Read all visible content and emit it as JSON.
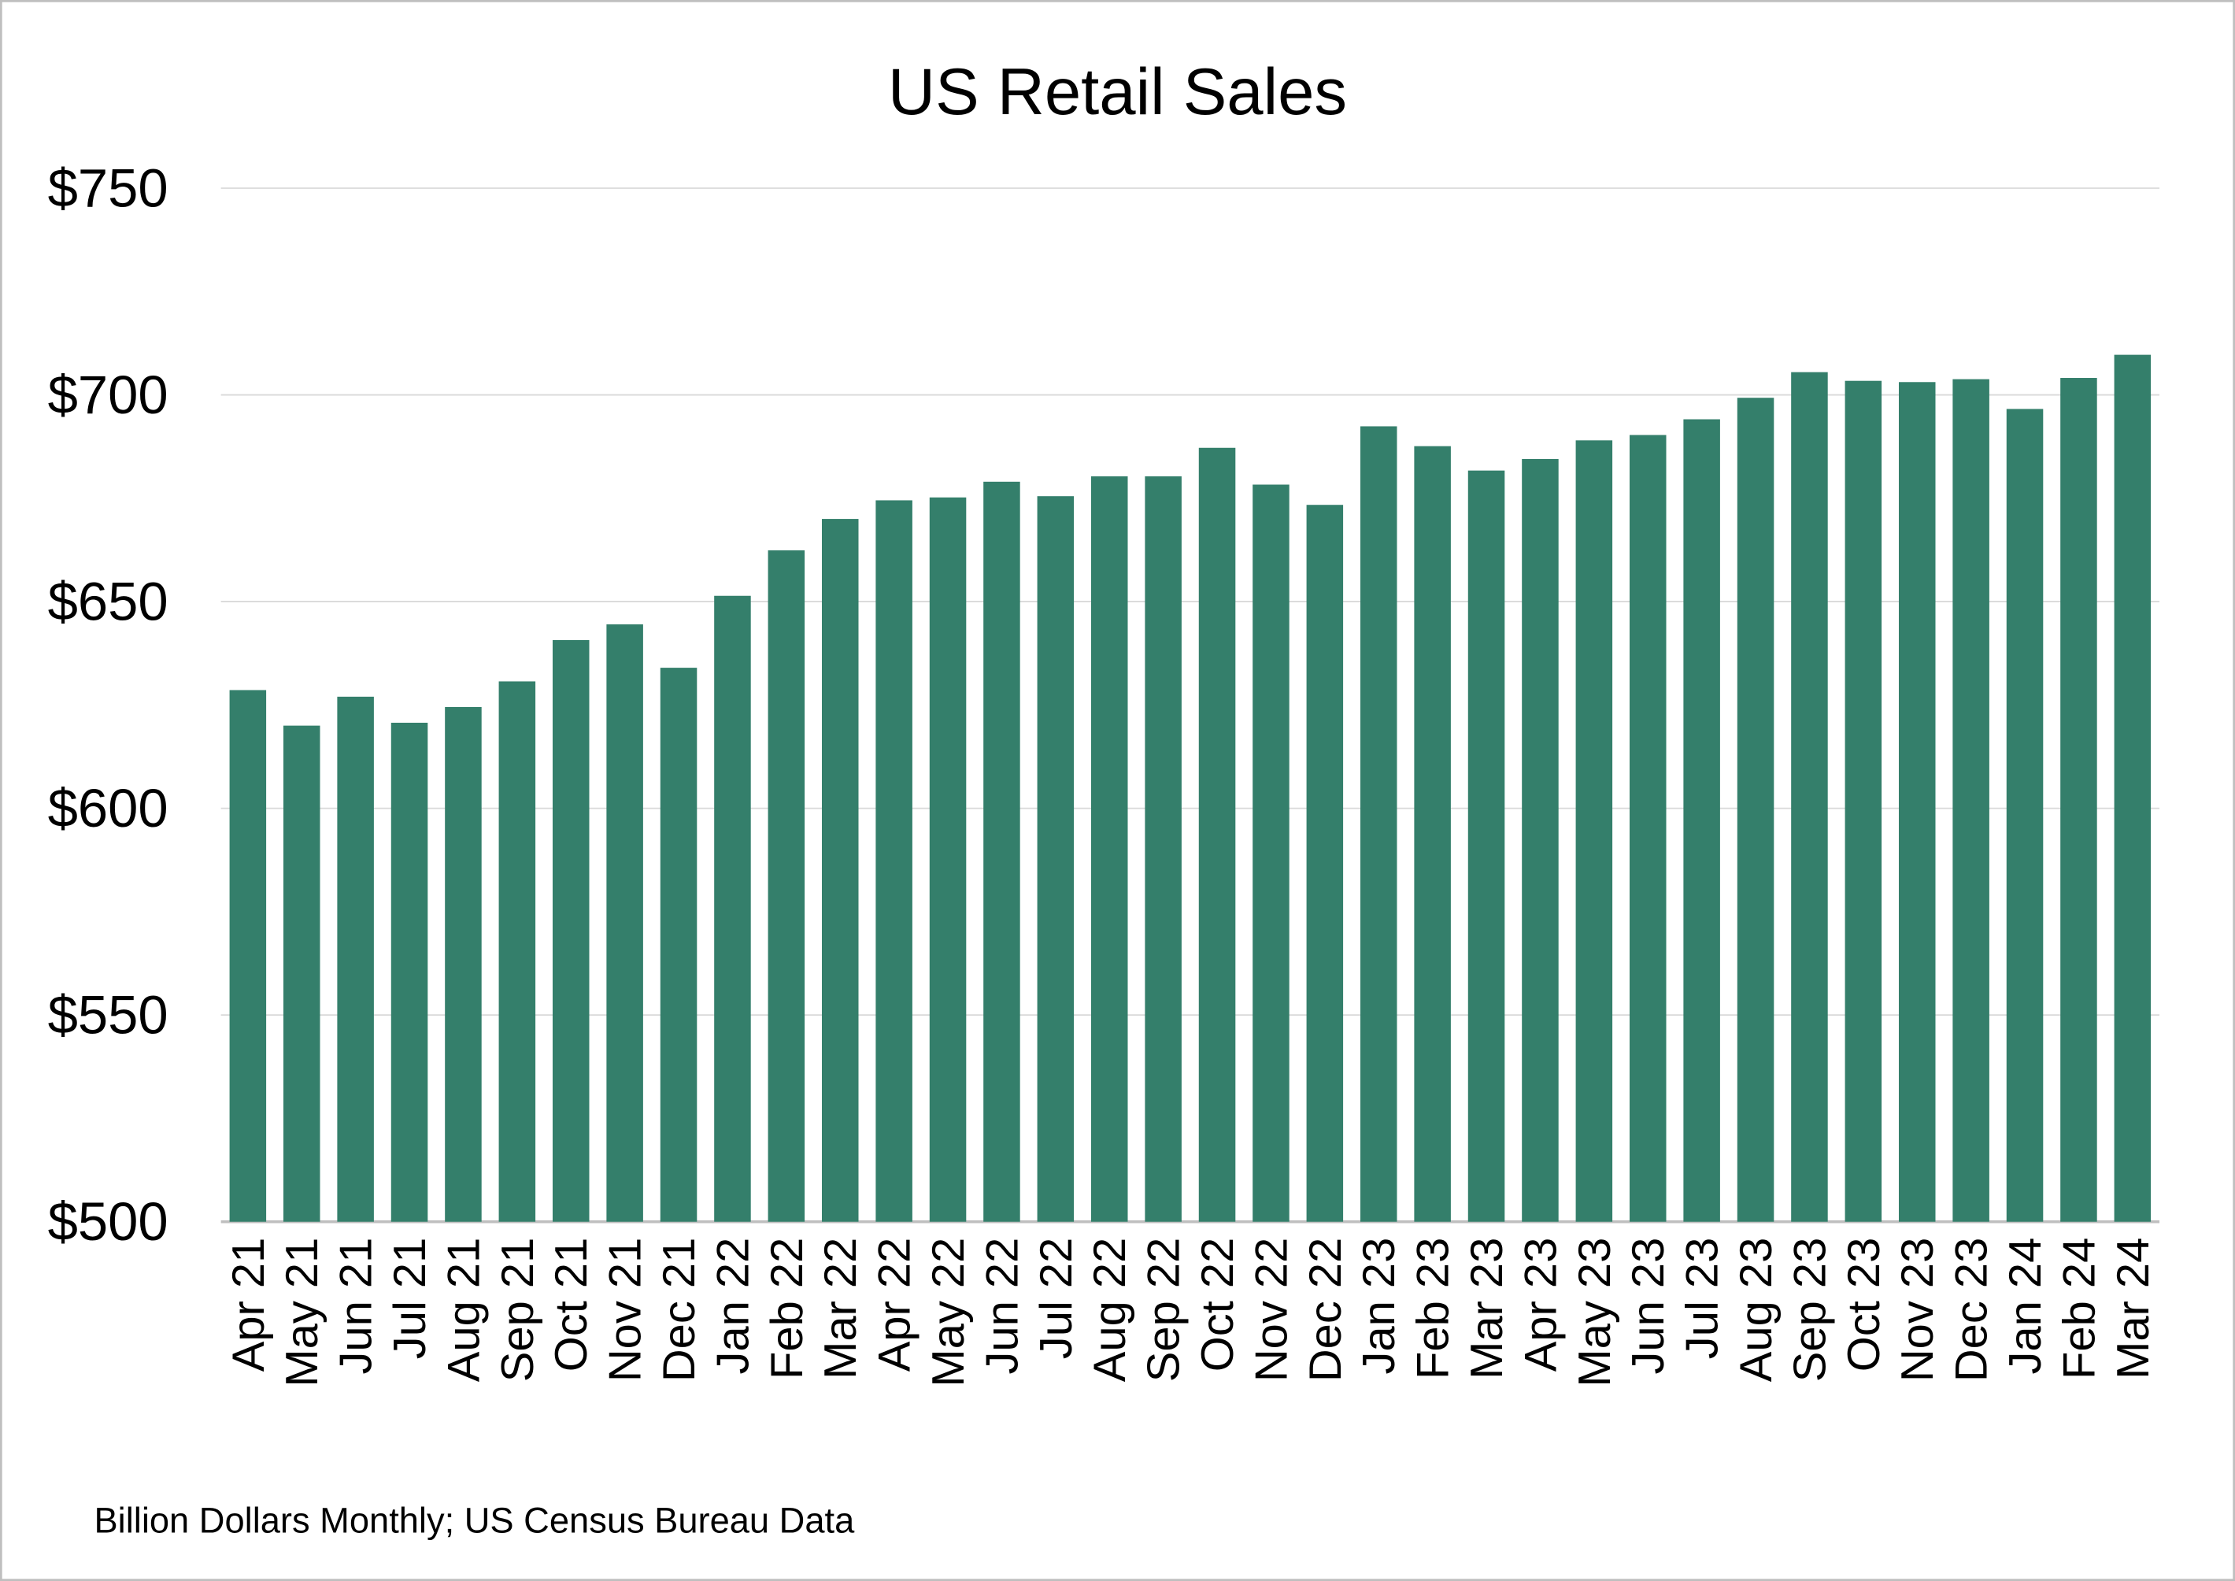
{
  "chart_data": {
    "type": "bar",
    "title": "US Retail Sales",
    "footnote": "Billion Dollars Monthly; US Census Bureau Data",
    "xlabel": "",
    "ylabel": "",
    "ylim": [
      500,
      750
    ],
    "yticks": [
      500,
      550,
      600,
      650,
      700,
      750
    ],
    "ytick_labels": [
      "$500",
      "$550",
      "$600",
      "$650",
      "$700",
      "$750"
    ],
    "grid": true,
    "bar_color": "#347F6B",
    "categories": [
      "Apr 21",
      "May 21",
      "Jun 21",
      "Jul 21",
      "Aug 21",
      "Sep 21",
      "Oct 21",
      "Nov 21",
      "Dec 21",
      "Jan 22",
      "Feb 22",
      "Mar 22",
      "Apr 22",
      "May 22",
      "Jun 22",
      "Jul 22",
      "Aug 22",
      "Sep 22",
      "Oct 22",
      "Nov 22",
      "Dec 22",
      "Jan 23",
      "Feb 23",
      "Mar 23",
      "Apr 23",
      "May 23",
      "Jun 23",
      "Jul 23",
      "Aug 23",
      "Sep 23",
      "Oct 23",
      "Nov 23",
      "Dec 23",
      "Jan 24",
      "Feb 24",
      "Mar 24"
    ],
    "values": [
      628.6,
      620.0,
      627.0,
      620.7,
      624.5,
      630.7,
      640.7,
      644.5,
      634.0,
      651.4,
      662.4,
      670.0,
      674.5,
      675.2,
      679.0,
      675.5,
      680.3,
      680.3,
      687.2,
      678.3,
      673.4,
      692.4,
      687.6,
      681.7,
      684.5,
      689.0,
      690.3,
      694.1,
      699.3,
      705.5,
      703.4,
      703.1,
      703.8,
      696.6,
      704.1,
      709.7
    ]
  }
}
